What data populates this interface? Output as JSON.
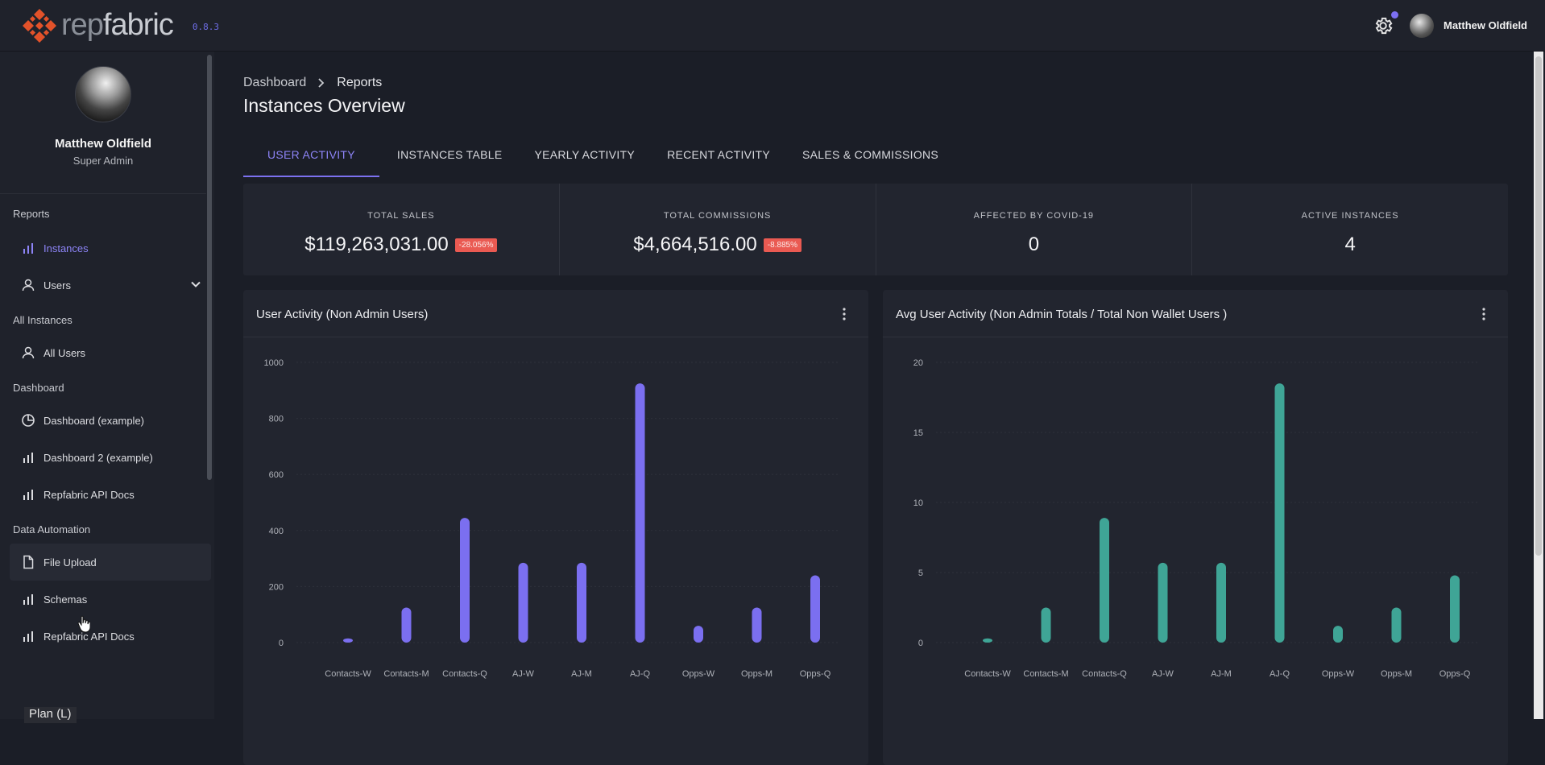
{
  "app": {
    "logo_text_rep": "rep",
    "logo_text_fabric": "fabric",
    "version": "0.8.3",
    "user_name": "Matthew Oldfield",
    "accent": "#7c71f0",
    "icons": {
      "logo": "repfabric-logo-icon",
      "settings": "gear-icon",
      "avatar": "avatar"
    }
  },
  "sidebar": {
    "profile": {
      "name": "Matthew Oldfield",
      "role": "Super Admin"
    },
    "sections": [
      {
        "title": "Reports",
        "items": [
          {
            "label": "Instances",
            "icon": "bar-chart-icon",
            "active": true
          },
          {
            "label": "Users",
            "icon": "user-icon",
            "expandable": true
          }
        ]
      },
      {
        "title": "All Instances",
        "items": [
          {
            "label": "All Users",
            "icon": "user-icon"
          }
        ]
      },
      {
        "title": "Dashboard",
        "items": [
          {
            "label": "Dashboard (example)",
            "icon": "pie-chart-icon"
          },
          {
            "label": "Dashboard 2 (example)",
            "icon": "bar-chart-icon"
          },
          {
            "label": "Repfabric API Docs",
            "icon": "bar-chart-icon"
          }
        ]
      },
      {
        "title": "Data Automation",
        "items": [
          {
            "label": "File Upload",
            "icon": "file-icon",
            "hover": true
          },
          {
            "label": "Schemas",
            "icon": "bar-chart-icon"
          },
          {
            "label": "Repfabric API Docs",
            "icon": "bar-chart-icon"
          }
        ]
      }
    ],
    "bottom_tip": "Plan (L)"
  },
  "main": {
    "breadcrumb": [
      "Dashboard",
      "Reports"
    ],
    "title": "Instances Overview",
    "tabs": [
      {
        "label": "USER ACTIVITY",
        "active": true
      },
      {
        "label": "INSTANCES TABLE"
      },
      {
        "label": "YEARLY ACTIVITY"
      },
      {
        "label": "RECENT ACTIVITY"
      },
      {
        "label": "SALES & COMMISSIONS"
      }
    ],
    "stats": [
      {
        "label": "TOTAL SALES",
        "value": "$119,263,031.00",
        "badge": "-28.056%"
      },
      {
        "label": "TOTAL COMMISSIONS",
        "value": "$4,664,516.00",
        "badge": "-8.885%"
      },
      {
        "label": "AFFECTED BY COVID-19",
        "value": "0"
      },
      {
        "label": "ACTIVE INSTANCES",
        "value": "4"
      }
    ]
  },
  "chart_data": [
    {
      "type": "bar",
      "title": "User Activity (Non Admin Users)",
      "categories": [
        "Contacts-W",
        "Contacts-M",
        "Contacts-Q",
        "AJ-W",
        "AJ-M",
        "AJ-Q",
        "Opps-W",
        "Opps-M",
        "Opps-Q"
      ],
      "values": [
        15,
        125,
        445,
        285,
        285,
        925,
        60,
        125,
        240
      ],
      "ylim": [
        0,
        1000
      ],
      "yticks": [
        0,
        200,
        400,
        600,
        800,
        1000
      ],
      "color": "#7b6ff0",
      "grid": true
    },
    {
      "type": "bar",
      "title": "Avg User Activity (Non Admin Totals / Total Non Wallet Users )",
      "categories": [
        "Contacts-W",
        "Contacts-M",
        "Contacts-Q",
        "AJ-W",
        "AJ-M",
        "AJ-Q",
        "Opps-W",
        "Opps-M",
        "Opps-Q"
      ],
      "values": [
        0.3,
        2.5,
        8.9,
        5.7,
        5.7,
        18.5,
        1.2,
        2.5,
        4.8
      ],
      "ylim": [
        0,
        20
      ],
      "yticks": [
        0,
        5,
        10,
        15,
        20
      ],
      "color": "#3fa596",
      "grid": true
    }
  ]
}
